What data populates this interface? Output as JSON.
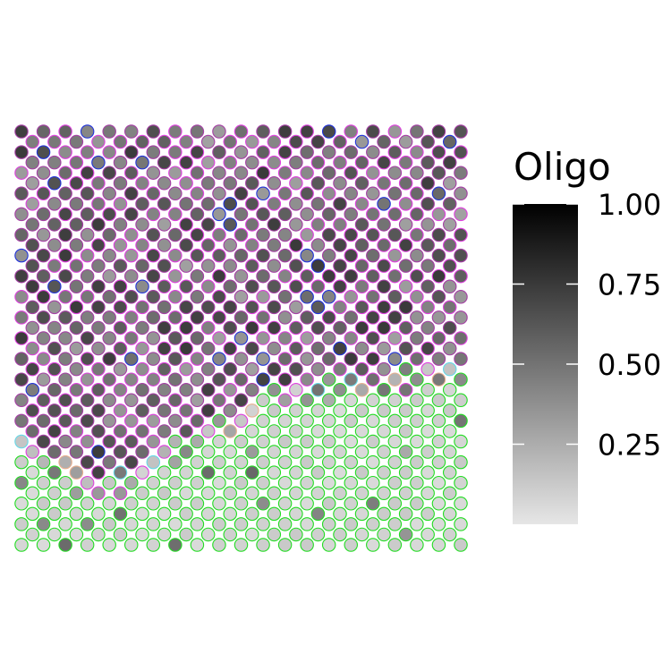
{
  "chart_data": {
    "type": "heatmap",
    "title": "",
    "xlabel": "",
    "ylabel": "",
    "grid": false,
    "legend": {
      "title": "Oligo",
      "placement": "right",
      "range": [
        0.0,
        1.0
      ],
      "ticks": [
        0.25,
        0.5,
        0.75,
        1.0
      ],
      "tick_labels": [
        "0.25",
        "0.50",
        "0.75",
        "1.00"
      ],
      "gradient": [
        "#e6e6e6",
        "#000000"
      ]
    },
    "spots": {
      "columns": 41,
      "rows": 41,
      "fill_value_range": [
        0.05,
        0.85
      ],
      "outline_groups": [
        {
          "color": "#a63fa6",
          "region": "upper tissue"
        },
        {
          "color": "#e040e0",
          "region": "upper tissue"
        },
        {
          "color": "#22dd22",
          "region": "lower tissue"
        },
        {
          "color": "#2233dd",
          "region": "scattered"
        },
        {
          "color": "#66d9e8",
          "region": "boundary"
        },
        {
          "color": "#e8b090",
          "region": "boundary"
        }
      ]
    }
  }
}
